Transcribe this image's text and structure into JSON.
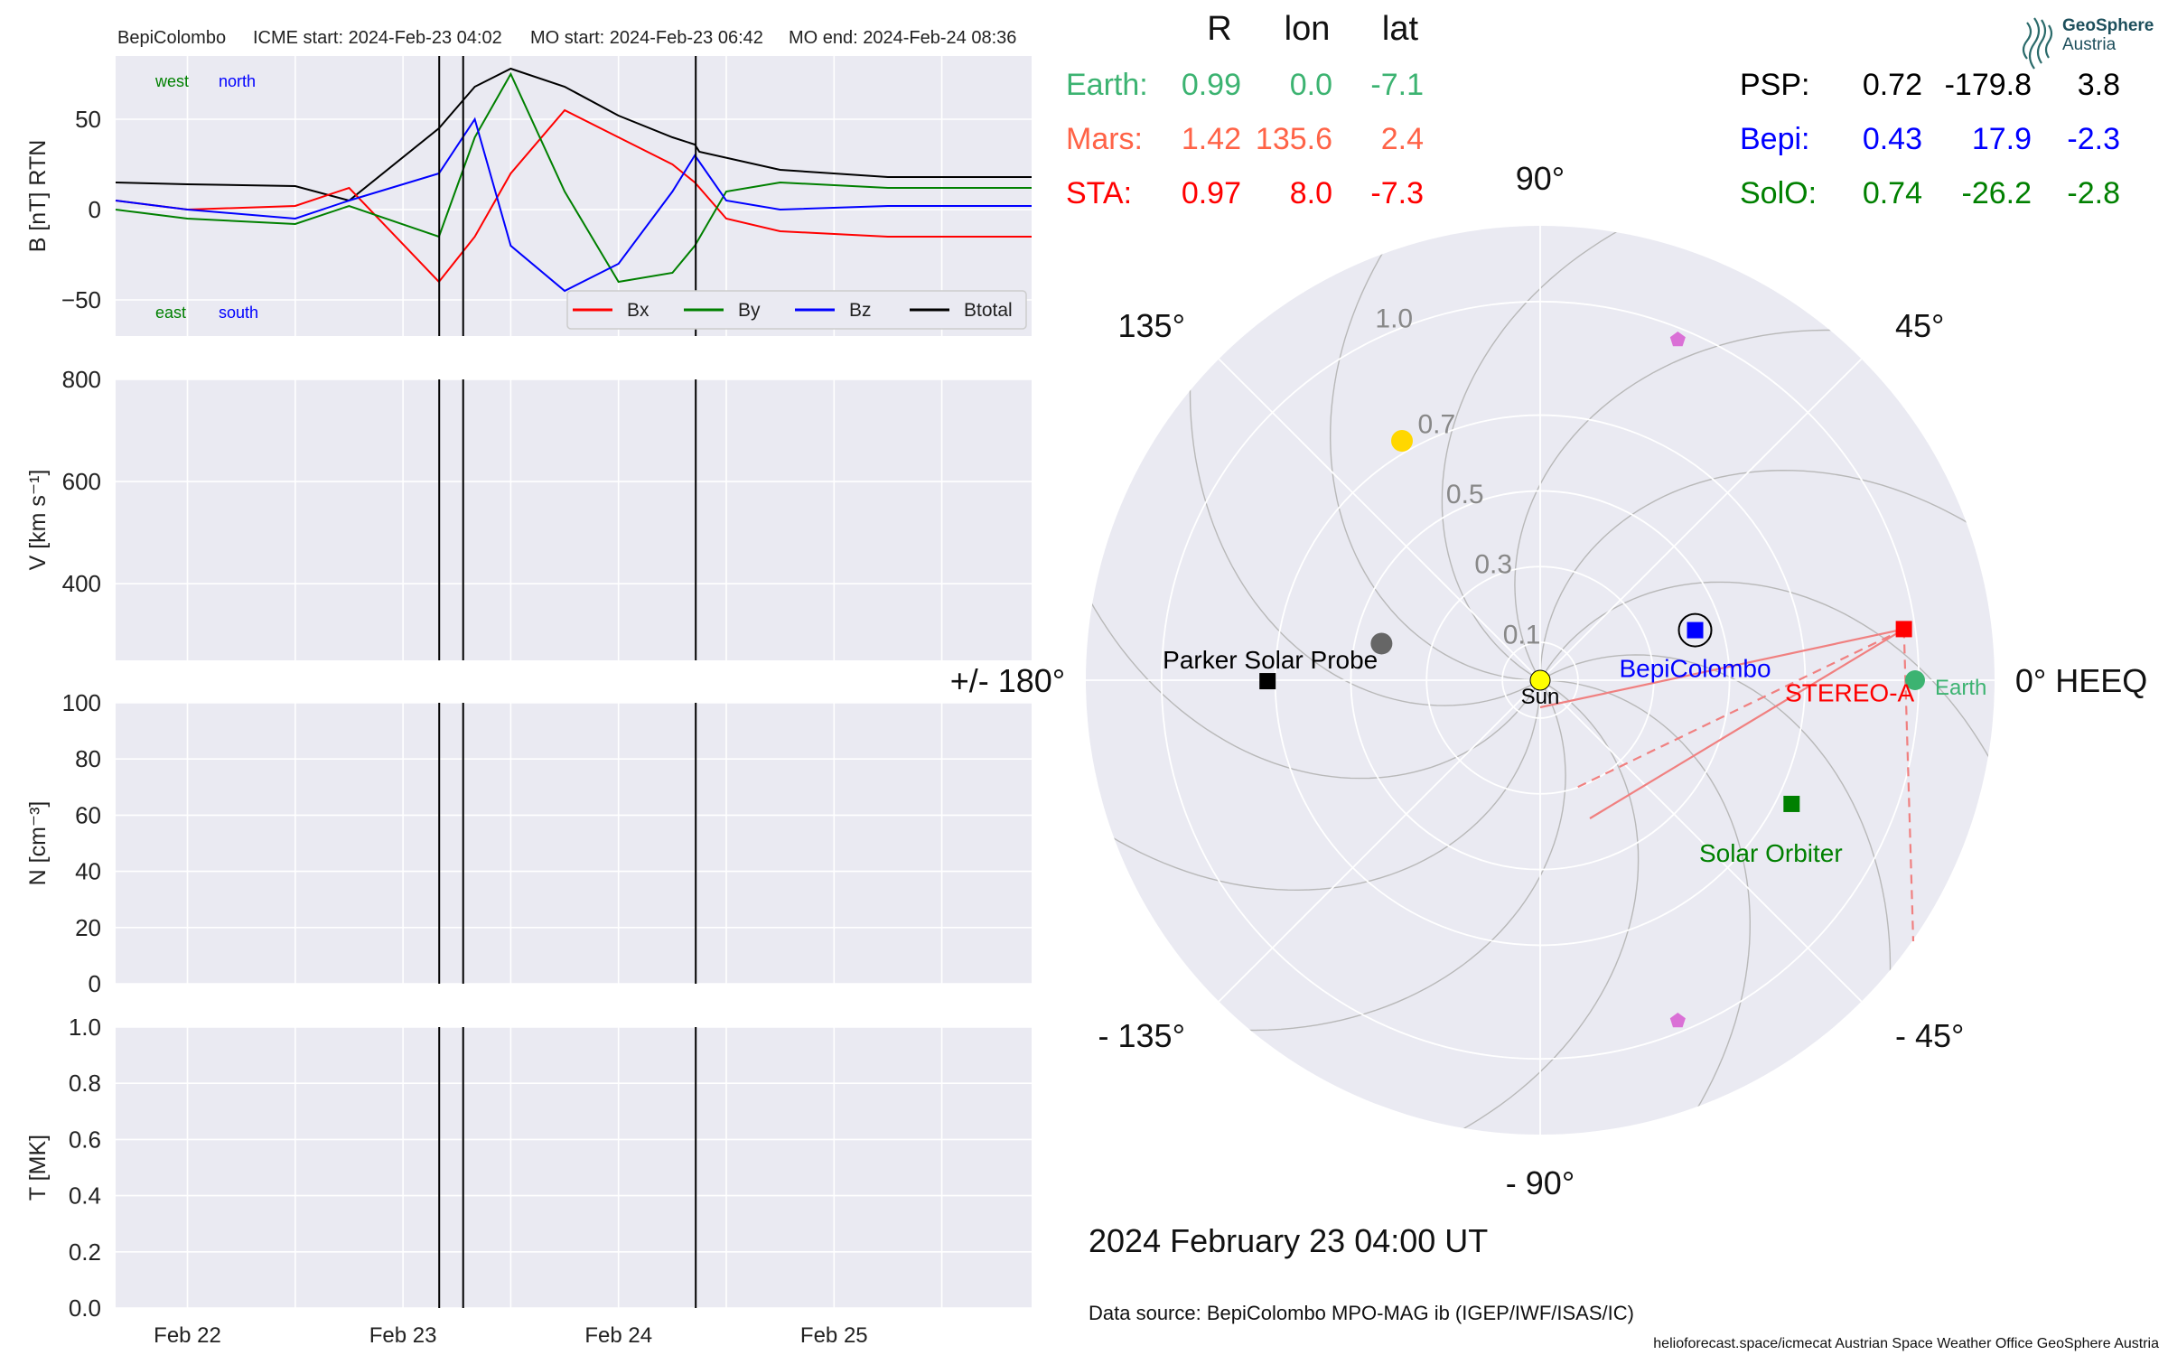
{
  "header": {
    "spacecraft": "BepiColombo",
    "icme_start": "ICME start: 2024-Feb-23 04:02",
    "mo_start": "MO start: 2024-Feb-23 06:42",
    "mo_end": "MO end: 2024-Feb-24 08:36"
  },
  "logo": {
    "line1": "GeoSphere",
    "line2": "Austria"
  },
  "date_label": "2024 February 23  04:00 UT",
  "data_source": "Data source: BepiColombo MPO-MAG ib (IGEP/IWF/ISAS/IC)",
  "footer": "helioforecast.space/icmecat   Austrian Space Weather Office   GeoSphere Austria",
  "positions_table": {
    "headers": [
      "R",
      "lon",
      "lat"
    ],
    "left_rows": [
      {
        "name": "Earth:",
        "R": "0.99",
        "lon": "0.0",
        "lat": "-7.1",
        "color": "#3cb371"
      },
      {
        "name": "Mars:",
        "R": "1.42",
        "lon": "135.6",
        "lat": "2.4",
        "color": "#ff6347"
      },
      {
        "name": "STA:",
        "R": "0.97",
        "lon": "8.0",
        "lat": "-7.3",
        "color": "#ff0000"
      }
    ],
    "right_rows": [
      {
        "name": "PSP:",
        "R": "0.72",
        "lon": "-179.8",
        "lat": "3.8",
        "color": "#000000"
      },
      {
        "name": "Bepi:",
        "R": "0.43",
        "lon": "17.9",
        "lat": "-2.3",
        "color": "#0000ff"
      },
      {
        "name": "SolO:",
        "R": "0.74",
        "lon": "-26.2",
        "lat": "-2.8",
        "color": "#008000"
      }
    ]
  },
  "chart_data": [
    {
      "type": "line",
      "panel": "magnetic field",
      "ylabel": "B [nT] RTN",
      "ylim": [
        -70,
        85
      ],
      "yticks": [
        "50",
        "0",
        "−50"
      ],
      "yticks_values": [
        50,
        0,
        -50
      ],
      "xticks": [
        "Feb 22",
        "Feb 23",
        "Feb 24",
        "Feb 25"
      ],
      "x_range": [
        "2024-02-21 16:00",
        "2024-02-25 22:00"
      ],
      "legend": [
        "Bx",
        "By",
        "Bz",
        "Btotal"
      ],
      "legend_colors": [
        "#ff0000",
        "#008000",
        "#0000ff",
        "#000000"
      ],
      "legend_position": "lower-right",
      "annotations": {
        "top_left": [
          "west",
          "north"
        ],
        "bottom_left": [
          "east",
          "south"
        ],
        "colors": [
          "#008000",
          "#0000ff"
        ]
      },
      "event_lines": [
        "2024-02-23 04:02",
        "2024-02-23 06:42",
        "2024-02-24 08:36"
      ],
      "series": [
        {
          "name": "Btotal",
          "x": [
            "2024-02-21 16:00",
            "2024-02-22 00:00",
            "2024-02-22 12:00",
            "2024-02-22 18:00",
            "2024-02-23 04:00",
            "2024-02-23 08:00",
            "2024-02-23 12:00",
            "2024-02-23 18:00",
            "2024-02-24 00:00",
            "2024-02-24 06:00",
            "2024-02-24 08:30",
            "2024-02-24 09:00",
            "2024-02-24 18:00",
            "2024-02-25 06:00",
            "2024-02-25 22:00"
          ],
          "values": [
            15,
            14,
            13,
            5,
            45,
            68,
            78,
            68,
            52,
            40,
            36,
            32,
            22,
            18,
            18
          ]
        },
        {
          "name": "Bx",
          "x": [
            "2024-02-21 16:00",
            "2024-02-22 00:00",
            "2024-02-22 12:00",
            "2024-02-22 18:00",
            "2024-02-23 04:00",
            "2024-02-23 08:00",
            "2024-02-23 12:00",
            "2024-02-23 18:00",
            "2024-02-24 00:00",
            "2024-02-24 06:00",
            "2024-02-24 08:30",
            "2024-02-24 12:00",
            "2024-02-24 18:00",
            "2024-02-25 06:00",
            "2024-02-25 22:00"
          ],
          "values": [
            5,
            0,
            2,
            12,
            -40,
            -15,
            20,
            55,
            40,
            25,
            15,
            -5,
            -12,
            -15,
            -15
          ]
        },
        {
          "name": "By",
          "x": [
            "2024-02-21 16:00",
            "2024-02-22 00:00",
            "2024-02-22 12:00",
            "2024-02-22 18:00",
            "2024-02-23 04:00",
            "2024-02-23 08:00",
            "2024-02-23 12:00",
            "2024-02-23 18:00",
            "2024-02-24 00:00",
            "2024-02-24 06:00",
            "2024-02-24 08:30",
            "2024-02-24 12:00",
            "2024-02-24 18:00",
            "2024-02-25 06:00",
            "2024-02-25 22:00"
          ],
          "values": [
            0,
            -5,
            -8,
            2,
            -15,
            40,
            75,
            10,
            -40,
            -35,
            -20,
            10,
            15,
            12,
            12
          ]
        },
        {
          "name": "Bz",
          "x": [
            "2024-02-21 16:00",
            "2024-02-22 00:00",
            "2024-02-22 12:00",
            "2024-02-22 18:00",
            "2024-02-23 04:00",
            "2024-02-23 08:00",
            "2024-02-23 12:00",
            "2024-02-23 18:00",
            "2024-02-24 00:00",
            "2024-02-24 06:00",
            "2024-02-24 08:30",
            "2024-02-24 12:00",
            "2024-02-24 18:00",
            "2024-02-25 06:00",
            "2024-02-25 22:00"
          ],
          "values": [
            5,
            0,
            -5,
            5,
            20,
            50,
            -20,
            -45,
            -30,
            10,
            30,
            5,
            0,
            2,
            2
          ]
        }
      ]
    },
    {
      "type": "line",
      "panel": "speed",
      "ylabel": "V [km s⁻¹]",
      "ylim": [
        250,
        800
      ],
      "yticks": [
        "800",
        "600",
        "400"
      ],
      "yticks_values": [
        800,
        600,
        400
      ],
      "event_lines": [
        "2024-02-23 04:02",
        "2024-02-23 06:42",
        "2024-02-24 08:36"
      ],
      "series": []
    },
    {
      "type": "line",
      "panel": "density",
      "ylabel": "N [cm⁻³]",
      "ylim": [
        0,
        100
      ],
      "yticks": [
        "100",
        "80",
        "60",
        "40",
        "20",
        "0"
      ],
      "yticks_values": [
        100,
        80,
        60,
        40,
        20,
        0
      ],
      "event_lines": [
        "2024-02-23 04:02",
        "2024-02-23 06:42",
        "2024-02-24 08:36"
      ],
      "series": []
    },
    {
      "type": "line",
      "panel": "temperature",
      "ylabel": "T [MK]",
      "ylim": [
        0,
        1
      ],
      "yticks": [
        "1.0",
        "0.8",
        "0.6",
        "0.4",
        "0.2",
        "0.0"
      ],
      "yticks_values": [
        1.0,
        0.8,
        0.6,
        0.4,
        0.2,
        0.0
      ],
      "xticks": [
        "Feb 22",
        "Feb 23",
        "Feb 24",
        "Feb 25"
      ],
      "event_lines": [
        "2024-02-23 04:02",
        "2024-02-23 06:42",
        "2024-02-24 08:36"
      ],
      "series": []
    },
    {
      "type": "scatter",
      "panel": "polar position plot",
      "projection": "polar",
      "rlim": [
        0,
        1.2
      ],
      "radial_ticks": [
        "0.1",
        "0.3",
        "0.5",
        "0.7",
        "1.0"
      ],
      "radial_ticks_values": [
        0.1,
        0.3,
        0.5,
        0.7,
        1.0
      ],
      "angle_labels": [
        "0° HEEQ",
        "45°",
        "90°",
        "135°",
        "+/- 180°",
        "- 135°",
        "- 90°",
        "- 45°"
      ],
      "angle_labels_values": [
        0,
        45,
        90,
        135,
        180,
        -135,
        -90,
        -45
      ],
      "bodies": [
        {
          "name": "Sun",
          "label": "Sun",
          "r": 0.0,
          "lon": 0,
          "color": "#ffff00",
          "marker": "circle"
        },
        {
          "name": "Earth",
          "label": "Earth",
          "r": 0.99,
          "lon": 0.0,
          "color": "#3cb371",
          "marker": "circle"
        },
        {
          "name": "Mars",
          "label": "",
          "r": 1.42,
          "lon": 135.6,
          "color": "#ff6347",
          "marker": "circle",
          "note": "outside plotted range"
        },
        {
          "name": "STEREO-A",
          "label": "STEREO-A",
          "r": 0.97,
          "lon": 8.0,
          "color": "#ff0000",
          "marker": "square"
        },
        {
          "name": "BepiColombo",
          "label": "BepiColombo",
          "r": 0.43,
          "lon": 17.9,
          "color": "#0000ff",
          "marker": "square-circled"
        },
        {
          "name": "Parker Solar Probe",
          "label": "Parker Solar Probe",
          "r": 0.72,
          "lon": -179.8,
          "color": "#000000",
          "marker": "square"
        },
        {
          "name": "Solar Orbiter",
          "label": "Solar Orbiter",
          "r": 0.74,
          "lon": -26.2,
          "color": "#008000",
          "marker": "square"
        },
        {
          "name": "Mercury",
          "label": "",
          "r": 0.43,
          "lon": 167,
          "color": "#666666",
          "marker": "circle"
        },
        {
          "name": "Venus",
          "label": "",
          "r": 0.73,
          "lon": 120,
          "color": "#ffd700",
          "marker": "circle"
        },
        {
          "name": "Comet marker 1",
          "label": "",
          "r": 0.97,
          "lon": 68,
          "color": "#da70d6",
          "marker": "pentagon"
        },
        {
          "name": "Comet marker 2",
          "label": "",
          "r": 0.97,
          "lon": -68,
          "color": "#da70d6",
          "marker": "pentagon"
        }
      ]
    }
  ]
}
